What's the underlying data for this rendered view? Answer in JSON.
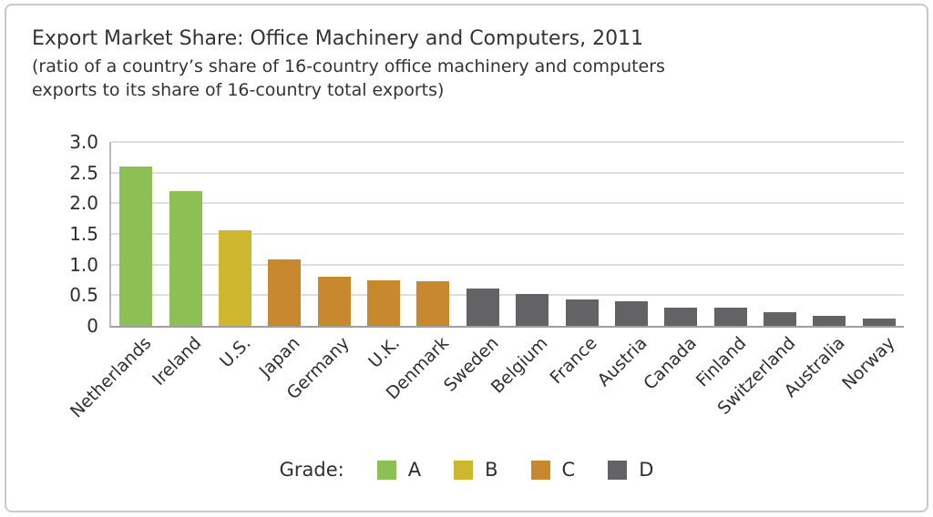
{
  "figure": {
    "title": "Export Market Share: Office Machinery and Computers, 2011",
    "subtitle_line1": "(ratio of a country’s share of 16-country office machinery and computers",
    "subtitle_line2": "exports to its share of 16-country total exports)"
  },
  "legend": {
    "label": "Grade:",
    "items": [
      {
        "label": "A",
        "color": "#8dc054"
      },
      {
        "label": "B",
        "color": "#ccb72f"
      },
      {
        "label": "C",
        "color": "#c8892e"
      },
      {
        "label": "D",
        "color": "#636366"
      }
    ]
  },
  "colors": {
    "text": "#333333",
    "gridline": "#dedede",
    "axis": "#9f9f9f",
    "frame_border": "#c9c9c9"
  },
  "chart_data": {
    "type": "bar",
    "title": "Export Market Share: Office Machinery and Computers, 2011",
    "subtitle": "(ratio of a country’s share of 16-country office machinery and computers exports to its share of 16-country total exports)",
    "categories": [
      "Netherlands",
      "Ireland",
      "U.S.",
      "Japan",
      "Germany",
      "U.K.",
      "Denmark",
      "Sweden",
      "Belgium",
      "France",
      "Austria",
      "Canada",
      "Finland",
      "Switzerland",
      "Australia",
      "Norway"
    ],
    "values": [
      2.6,
      2.2,
      1.56,
      1.08,
      0.8,
      0.75,
      0.73,
      0.61,
      0.52,
      0.43,
      0.4,
      0.3,
      0.29,
      0.22,
      0.17,
      0.12
    ],
    "grades": [
      "A",
      "A",
      "B",
      "C",
      "C",
      "C",
      "C",
      "D",
      "D",
      "D",
      "D",
      "D",
      "D",
      "D",
      "D",
      "D"
    ],
    "grade_colors": {
      "A": "#8dc054",
      "B": "#ccb72f",
      "C": "#c8892e",
      "D": "#636366"
    },
    "xlabel": "",
    "ylabel": "",
    "ylim": [
      0,
      3.0
    ],
    "yticks": [
      "3.0",
      "2.5",
      "2.0",
      "1.5",
      "1.0",
      "0.5",
      "0"
    ],
    "grid": true,
    "legend_label": "Grade:",
    "legend_position": "bottom"
  }
}
